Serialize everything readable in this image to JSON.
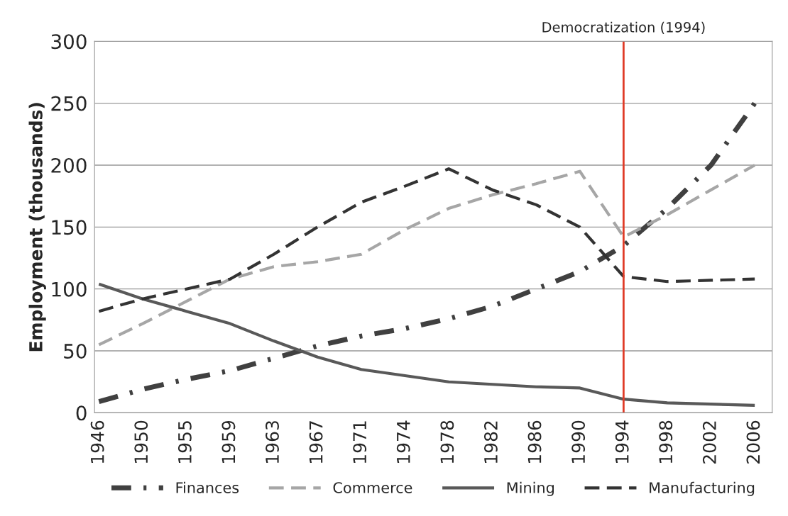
{
  "chart_data": {
    "type": "line",
    "ylabel": "Employment (thousands)",
    "categories": [
      "1946",
      "1950",
      "1955",
      "1959",
      "1963",
      "1967",
      "1971",
      "1974",
      "1978",
      "1982",
      "1986",
      "1990",
      "1994",
      "1998",
      "2002",
      "2006"
    ],
    "series": [
      {
        "name": "Finances",
        "color": "#404040",
        "line_style": "dashdot",
        "values": [
          9,
          19,
          27,
          34,
          44,
          54,
          62,
          68,
          76,
          86,
          100,
          114,
          135,
          165,
          200,
          250
        ]
      },
      {
        "name": "Commerce",
        "color": "#a6a6a6",
        "line_style": "dashed",
        "values": [
          55,
          72,
          90,
          108,
          118,
          122,
          128,
          148,
          165,
          176,
          185,
          195,
          142,
          160,
          180,
          200
        ]
      },
      {
        "name": "Mining",
        "color": "#595959",
        "line_style": "solid",
        "values": [
          104,
          92,
          82,
          72,
          58,
          45,
          35,
          30,
          25,
          23,
          21,
          20,
          11,
          8,
          7,
          6
        ]
      },
      {
        "name": "Manufacturing",
        "color": "#333333",
        "line_style": "dashed",
        "values": [
          82,
          92,
          100,
          108,
          128,
          150,
          170,
          183,
          197,
          180,
          168,
          150,
          110,
          106,
          107,
          108
        ]
      }
    ],
    "ylim": [
      0,
      300
    ],
    "yticks": [
      0,
      50,
      100,
      150,
      200,
      250,
      300
    ],
    "ref_lines": [
      {
        "axis": "x",
        "value": "1994",
        "label": "Democratization (1994)",
        "color": "#e03c28"
      }
    ],
    "grid": "y",
    "legend": "bottom"
  }
}
